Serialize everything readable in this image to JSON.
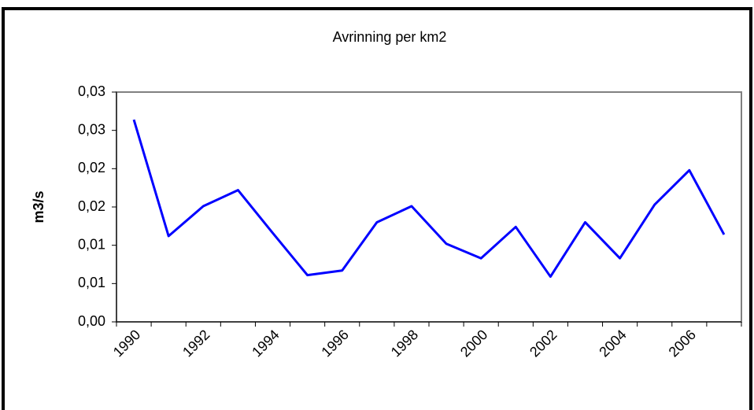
{
  "chart_data": {
    "type": "line",
    "title": "Avrinning per km2",
    "y_label": "m3/s",
    "categories": [
      "1990",
      null,
      "1992",
      null,
      "1994",
      null,
      "1996",
      null,
      "1998",
      null,
      "2000",
      null,
      "2002",
      null,
      "2004",
      null,
      "2006",
      null
    ],
    "values": [
      0.0264,
      0.0112,
      0.0151,
      0.0172,
      0.0116,
      0.0061,
      0.0067,
      0.013,
      0.0151,
      0.0102,
      0.0083,
      0.0124,
      0.0059,
      0.013,
      0.0083,
      0.0153,
      0.0198,
      0.0114
    ],
    "color": "#0000ff",
    "ylim": [
      0,
      0.03
    ],
    "yticks": [
      {
        "value": 0,
        "label": "0,00"
      },
      {
        "value": 0.005,
        "label": "0,01"
      },
      {
        "value": 0.01,
        "label": "0,01"
      },
      {
        "value": 0.015,
        "label": "0,02"
      },
      {
        "value": 0.02,
        "label": "0,02"
      },
      {
        "value": 0.025,
        "label": "0,03"
      },
      {
        "value": 0.03,
        "label": "0,03"
      }
    ],
    "grid": false
  }
}
